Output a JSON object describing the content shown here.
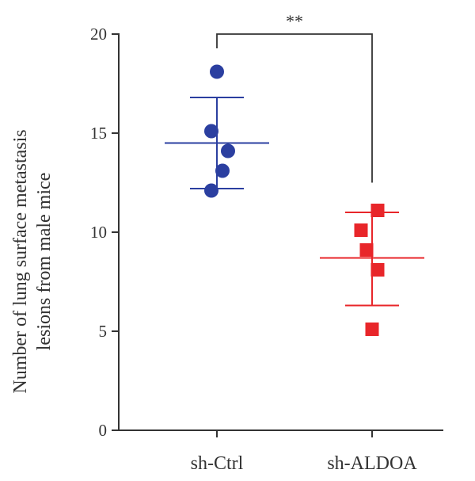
{
  "chart_data": {
    "type": "scatter",
    "title": "",
    "ylabel_lines": [
      "Number of lung surface metastasis",
      "lesions from male mice"
    ],
    "ylim": [
      0,
      20
    ],
    "yticks": [
      0,
      5,
      10,
      15,
      20
    ],
    "categories": [
      "sh-Ctrl",
      "sh-ALDOA"
    ],
    "series": [
      {
        "category": "sh-Ctrl",
        "marker": "circle",
        "color": "#2b3fa0",
        "points": [
          {
            "jitter": 0,
            "y": 18.1
          },
          {
            "jitter": -0.5,
            "y": 15.1
          },
          {
            "jitter": 1,
            "y": 14.1
          },
          {
            "jitter": 0.5,
            "y": 13.1
          },
          {
            "jitter": -0.5,
            "y": 12.1
          }
        ],
        "mean": 14.5,
        "sd_low": 12.2,
        "sd_high": 16.8
      },
      {
        "category": "sh-ALDOA",
        "marker": "square",
        "color": "#e8262a",
        "points": [
          {
            "jitter": 0.5,
            "y": 11.1
          },
          {
            "jitter": -1,
            "y": 10.1
          },
          {
            "jitter": -0.5,
            "y": 9.1
          },
          {
            "jitter": 0.5,
            "y": 8.1
          },
          {
            "jitter": 0,
            "y": 5.1
          }
        ],
        "mean": 8.7,
        "sd_low": 6.3,
        "sd_high": 11.0
      }
    ],
    "significance": {
      "label": "**",
      "y": 20,
      "right_end_y": 12.5
    },
    "colors": {
      "axis": "#333333",
      "text": "#333333"
    }
  }
}
